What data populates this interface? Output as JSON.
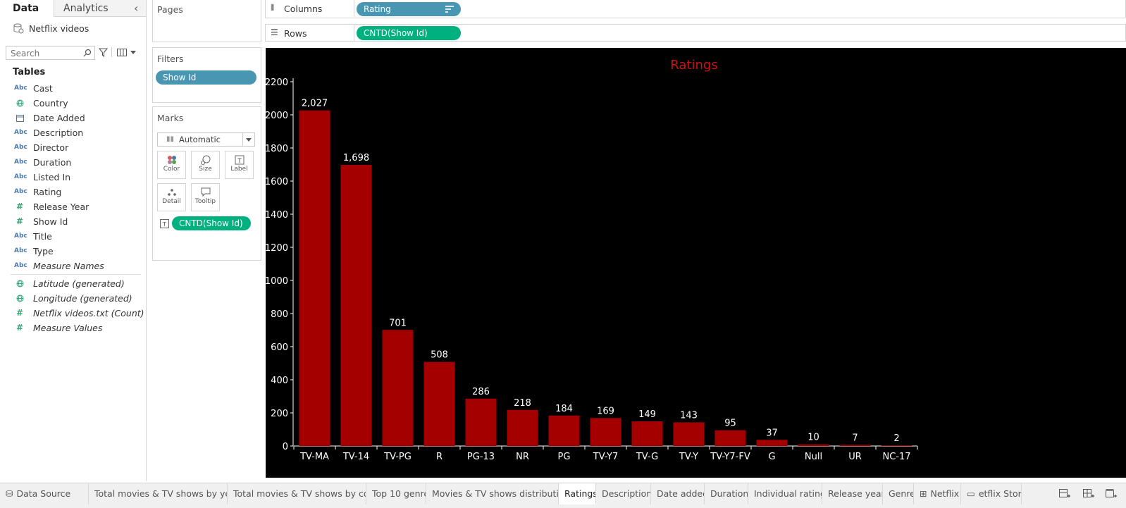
{
  "data_pane": {
    "tabs": [
      {
        "label": "Data"
      },
      {
        "label": "Analytics"
      }
    ],
    "collapse_glyph": "‹",
    "datasource": "Netflix videos",
    "search_placeholder": "Search",
    "tables_heading": "Tables",
    "fields": [
      {
        "icon": "Abc",
        "type": "string",
        "name": "Cast",
        "italic": false
      },
      {
        "icon": "globe",
        "type": "geo",
        "name": "Country",
        "italic": false
      },
      {
        "icon": "calendar",
        "type": "date",
        "name": "Date Added",
        "italic": false
      },
      {
        "icon": "Abc",
        "type": "string",
        "name": "Description",
        "italic": false
      },
      {
        "icon": "Abc",
        "type": "string",
        "name": "Director",
        "italic": false
      },
      {
        "icon": "Abc",
        "type": "string",
        "name": "Duration",
        "italic": false
      },
      {
        "icon": "Abc",
        "type": "string",
        "name": "Listed In",
        "italic": false
      },
      {
        "icon": "Abc",
        "type": "string",
        "name": "Rating",
        "italic": false
      },
      {
        "icon": "#",
        "type": "number",
        "name": "Release Year",
        "italic": false
      },
      {
        "icon": "#",
        "type": "number",
        "name": "Show Id",
        "italic": false
      },
      {
        "icon": "Abc",
        "type": "string",
        "name": "Title",
        "italic": false
      },
      {
        "icon": "Abc",
        "type": "string",
        "name": "Type",
        "italic": false
      },
      {
        "icon": "Abc",
        "type": "string",
        "name": "Measure Names",
        "italic": true
      },
      {
        "icon": "globe",
        "type": "geo",
        "name": "Latitude (generated)",
        "italic": true
      },
      {
        "icon": "globe",
        "type": "geo",
        "name": "Longitude (generated)",
        "italic": true
      },
      {
        "icon": "#",
        "type": "number",
        "name": "Netflix videos.txt (Count)",
        "italic": true
      },
      {
        "icon": "#",
        "type": "number",
        "name": "Measure Values",
        "italic": true
      }
    ]
  },
  "pages_card": {
    "title": "Pages"
  },
  "filters_card": {
    "title": "Filters",
    "pills": [
      {
        "label": "Show Id"
      }
    ]
  },
  "marks_card": {
    "title": "Marks",
    "mark_type": "Automatic",
    "buttons": [
      {
        "label": "Color"
      },
      {
        "label": "Size"
      },
      {
        "label": "Label"
      },
      {
        "label": "Detail"
      },
      {
        "label": "Tooltip"
      }
    ],
    "pill": {
      "label": "CNTD(Show Id)"
    }
  },
  "shelves": {
    "columns": {
      "label": "Columns",
      "pill": "Rating"
    },
    "rows": {
      "label": "Rows",
      "pill": "CNTD(Show Id)"
    }
  },
  "colors": {
    "bar": "#a50000",
    "title": "#cc1111",
    "viz_bg": "#000000",
    "pill_blue": "#4996b2",
    "pill_green": "#00b180"
  },
  "chart_data": {
    "type": "bar",
    "title": "Ratings",
    "categories": [
      "TV-MA",
      "TV-14",
      "TV-PG",
      "R",
      "PG-13",
      "NR",
      "PG",
      "TV-Y7",
      "TV-G",
      "TV-Y",
      "TV-Y7-FV",
      "G",
      "Null",
      "UR",
      "NC-17"
    ],
    "values": [
      2027,
      1698,
      701,
      508,
      286,
      218,
      184,
      169,
      149,
      143,
      95,
      37,
      10,
      7,
      2
    ],
    "value_labels": [
      "2,027",
      "1,698",
      "701",
      "508",
      "286",
      "218",
      "184",
      "169",
      "149",
      "143",
      "95",
      "37",
      "10",
      "7",
      "2"
    ],
    "yticks": [
      0,
      200,
      400,
      600,
      800,
      1000,
      1200,
      1400,
      1600,
      1800,
      2000,
      2200
    ],
    "ylim": [
      0,
      2200
    ],
    "xlabel": "",
    "ylabel": "",
    "grid": false
  },
  "sheet_tabs": [
    {
      "label": "Data Source",
      "icon": "datasource"
    },
    {
      "label": "Total movies & TV shows by year"
    },
    {
      "label": "Total movies & TV shows by cou..."
    },
    {
      "label": "Top 10 genre"
    },
    {
      "label": "Movies & TV shows distribution"
    },
    {
      "label": "Ratings",
      "active": true
    },
    {
      "label": "Description"
    },
    {
      "label": "Date added"
    },
    {
      "label": "Duration"
    },
    {
      "label": "Individual rating"
    },
    {
      "label": "Release year"
    },
    {
      "label": "Genre"
    },
    {
      "label": "Netflix",
      "icon": "dashboard"
    },
    {
      "label": "etflix Story",
      "icon": "story"
    }
  ]
}
